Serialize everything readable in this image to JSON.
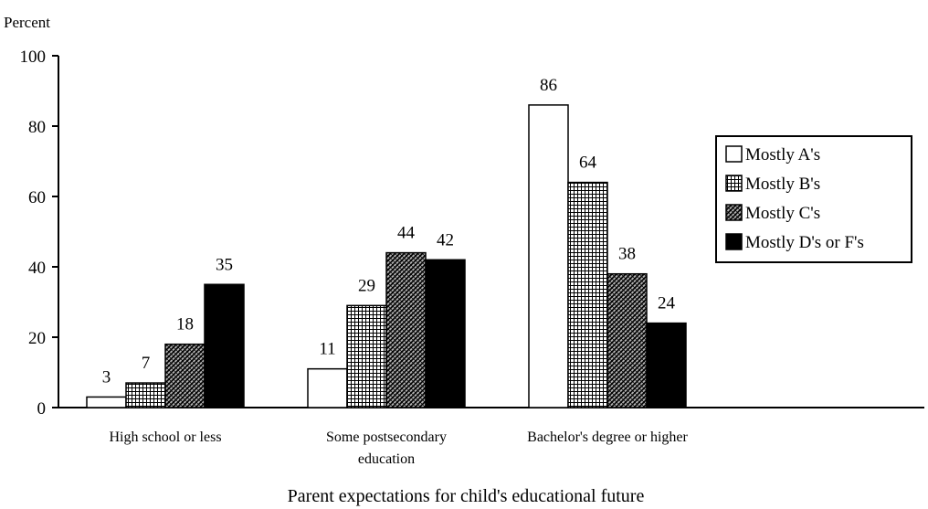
{
  "chart_data": {
    "type": "bar",
    "title": "",
    "ylabel": "Percent",
    "xlabel": "Parent expectations for child's educational future",
    "ylim": [
      0,
      100
    ],
    "yticks": [
      0,
      20,
      40,
      60,
      80,
      100
    ],
    "grid": false,
    "legend_position": "right",
    "categories": [
      [
        "High school or less"
      ],
      [
        "Some postsecondary",
        "education"
      ],
      [
        "Bachelor's degree or higher"
      ]
    ],
    "series": [
      {
        "name": "Mostly A's",
        "values": [
          3,
          11,
          86
        ],
        "pattern": "white"
      },
      {
        "name": "Mostly B's",
        "values": [
          7,
          29,
          64
        ],
        "pattern": "grid"
      },
      {
        "name": "Mostly C's",
        "values": [
          18,
          44,
          38
        ],
        "pattern": "diagonal"
      },
      {
        "name": "Mostly D's or F's",
        "values": [
          35,
          42,
          24
        ],
        "pattern": "black"
      }
    ]
  }
}
